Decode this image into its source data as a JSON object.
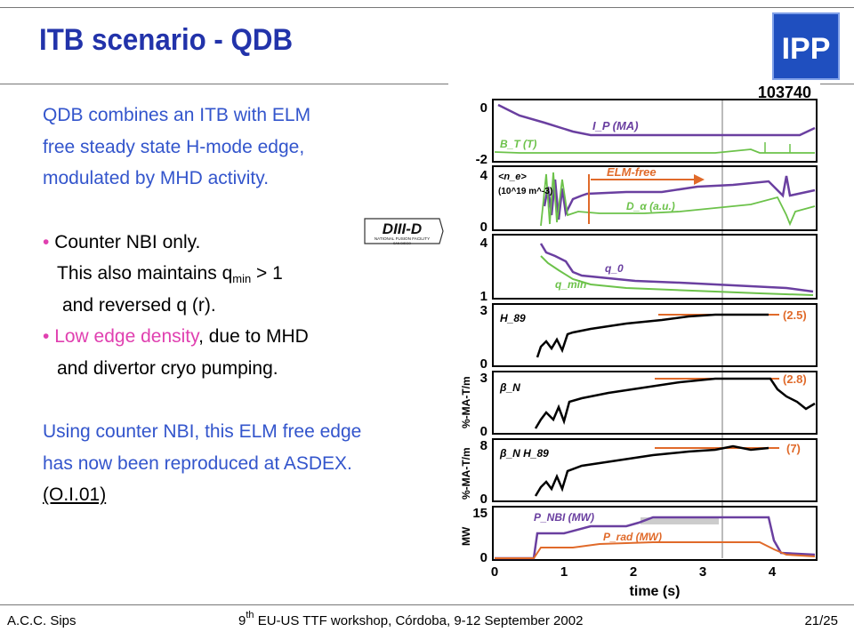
{
  "slide": {
    "title": "ITB scenario - QDB",
    "logo_text": "IPP",
    "lines": {
      "l1": "QDB combines an ITB with ELM",
      "l2": "free steady state H-mode edge,",
      "l3": "modulated by MHD activity.",
      "b1": "• Counter NBI only.",
      "b1a_pre": "This also maintains q",
      "b1a_sub": "min",
      "b1a_post": " > 1",
      "b1b": "and reversed q (r).",
      "b2_bullet": "• ",
      "b2_hl": "Low edge density",
      "b2_rest": ", due to MHD",
      "b2b": "and divertor cryo pumping.",
      "c1": "Using counter NBI, this ELM free edge",
      "c2": "has now been reproduced at ASDEX.",
      "c3": "(O.I.01)"
    },
    "diiid_logo": {
      "main": "DIII-D",
      "sub1": "NATIONAL FUSION FACILITY",
      "sub2": "SAN DIEGO"
    }
  },
  "figure": {
    "shot": "103740",
    "x_label": "time (s)",
    "x_ticks": [
      "0",
      "1",
      "2",
      "3",
      "4"
    ],
    "panels": [
      {
        "ticks": [
          "0",
          "-2"
        ],
        "labels": [
          "I_P (MA)",
          "B_T (T)"
        ]
      },
      {
        "ticks": [
          "4",
          "0"
        ],
        "labels": [
          "<n_e>",
          "(10^19 m^-3)",
          "D_α (a.u.)",
          "ELM-free"
        ]
      },
      {
        "ticks": [
          "4",
          "1"
        ],
        "labels": [
          "q_0",
          "q_min"
        ]
      },
      {
        "ticks": [
          "3",
          "0"
        ],
        "labels": [
          "H_89",
          "(2.5)"
        ]
      },
      {
        "ticks": [
          "3",
          "0"
        ],
        "labels": [
          "β_N",
          "%-MA-T/m",
          "(2.8)"
        ]
      },
      {
        "ticks": [
          "8",
          "0"
        ],
        "labels": [
          "β_N H_89",
          "%-MA-T/m",
          "(7)"
        ]
      },
      {
        "ticks": [
          "15",
          "0"
        ],
        "labels": [
          "P_NBI (MW)",
          "P_rad (MW)",
          "MW"
        ]
      }
    ],
    "colors": {
      "purple": "#6a3fa0",
      "green": "#6cc24a",
      "orange": "#e06a2a",
      "black": "#000000"
    }
  },
  "footer": {
    "left": "A.C.C. Sips",
    "center_pre": "9",
    "center_sup": "th",
    "center_post": " EU-US TTF workshop, Córdoba, 9-12 September 2002",
    "right": "21/25"
  }
}
